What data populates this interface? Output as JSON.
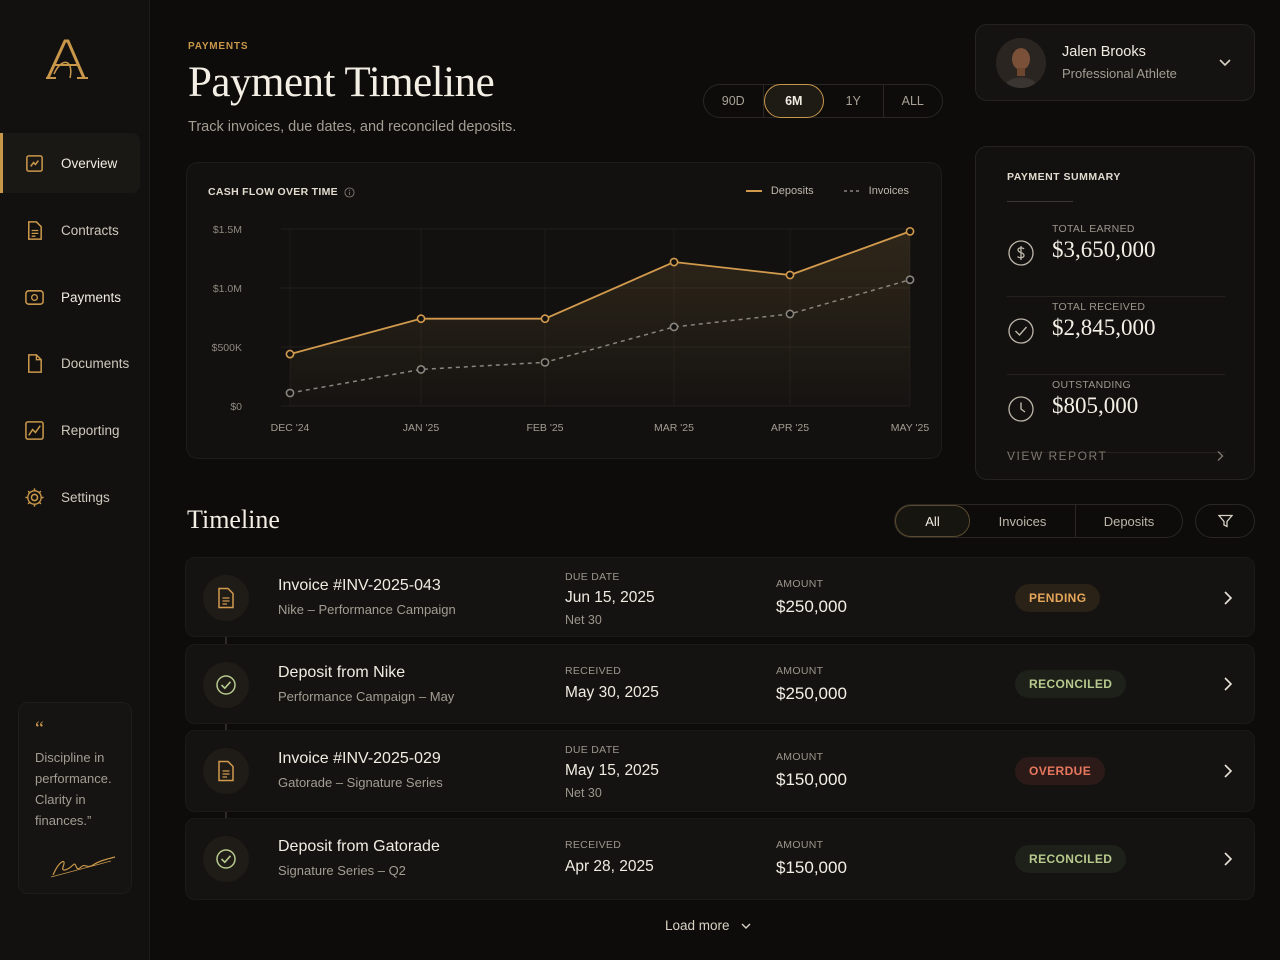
{
  "sidebar": {
    "logo": "A",
    "items": [
      {
        "label": "Overview",
        "icon": "overview-icon"
      },
      {
        "label": "Contracts",
        "icon": "contracts-icon"
      },
      {
        "label": "Payments",
        "icon": "payments-icon"
      },
      {
        "label": "Documents",
        "icon": "documents-icon"
      },
      {
        "label": "Reporting",
        "icon": "reporting-icon"
      },
      {
        "label": "Settings",
        "icon": "gear-icon"
      }
    ],
    "quote": {
      "mark": "“",
      "text": "Discipline in performance. Clarity in finances.”"
    }
  },
  "header": {
    "eyebrow": "PAYMENTS",
    "title": "Payment Timeline",
    "subtitle": "Track invoices, due dates, and reconciled deposits.",
    "ranges": [
      "90D",
      "6M",
      "1Y",
      "ALL"
    ],
    "active_range": "6M"
  },
  "profile": {
    "name": "Jalen Brooks",
    "role": "Professional Athlete"
  },
  "chart_card": {
    "title": "CASH FLOW OVER TIME",
    "legend": [
      "Deposits",
      "Invoices"
    ]
  },
  "chart_data": {
    "type": "line",
    "title": "CASH FLOW OVER TIME",
    "categories": [
      "DEC '24",
      "JAN '25",
      "FEB '25",
      "MAR '25",
      "APR '25",
      "MAY '25"
    ],
    "y_tick_labels": [
      "$0",
      "$500K",
      "$1.0M",
      "$1.5M"
    ],
    "y_ticks": [
      0,
      500000,
      1000000,
      1500000
    ],
    "ylim": [
      0,
      1500000
    ],
    "series": [
      {
        "name": "Deposits",
        "style": "solid",
        "color": "#d19a4d",
        "values": [
          440000,
          740000,
          740000,
          1220000,
          1110000,
          1480000
        ]
      },
      {
        "name": "Invoices",
        "style": "dashed",
        "color": "#8a857c",
        "values": [
          110000,
          310000,
          370000,
          670000,
          780000,
          1070000
        ]
      }
    ],
    "grid": true,
    "legend_position": "top-right"
  },
  "summary": {
    "title": "PAYMENT SUMMARY",
    "items": [
      {
        "label": "TOTAL EARNED",
        "value": "$3,650,000",
        "icon": "dollar-icon"
      },
      {
        "label": "TOTAL RECEIVED",
        "value": "$2,845,000",
        "icon": "check-circle-icon"
      },
      {
        "label": "OUTSTANDING",
        "value": "$805,000",
        "icon": "clock-icon"
      }
    ],
    "link": "VIEW REPORT"
  },
  "timeline": {
    "title": "Timeline",
    "filters": [
      "All",
      "Invoices",
      "Deposits"
    ],
    "active_filter": "All",
    "rows": [
      {
        "kind": "invoice",
        "title": "Invoice #INV-2025-043",
        "subtitle": "Nike – Performance Campaign",
        "date_label": "DUE DATE",
        "date": "Jun 15, 2025",
        "note": "Net 30",
        "amount_label": "AMOUNT",
        "amount": "$250,000",
        "status": "PENDING"
      },
      {
        "kind": "deposit",
        "title": "Deposit from Nike",
        "subtitle": "Performance Campaign – May",
        "date_label": "RECEIVED",
        "date": "May 30, 2025",
        "note": "",
        "amount_label": "AMOUNT",
        "amount": "$250,000",
        "status": "RECONCILED"
      },
      {
        "kind": "invoice",
        "title": "Invoice #INV-2025-029",
        "subtitle": "Gatorade – Signature Series",
        "date_label": "DUE DATE",
        "date": "May 15, 2025",
        "note": "Net 30",
        "amount_label": "AMOUNT",
        "amount": "$150,000",
        "status": "OVERDUE"
      },
      {
        "kind": "deposit",
        "title": "Deposit from Gatorade",
        "subtitle": "Signature Series – Q2",
        "date_label": "RECEIVED",
        "date": "Apr 28, 2025",
        "note": "",
        "amount_label": "AMOUNT",
        "amount": "$150,000",
        "status": "RECONCILED"
      }
    ],
    "load_more": "Load more"
  },
  "colors": {
    "accent": "#c9974a",
    "background": "#0d0c0b",
    "pending": "#e5a75a",
    "reconciled": "#b7c98d",
    "overdue": "#e8775f"
  }
}
